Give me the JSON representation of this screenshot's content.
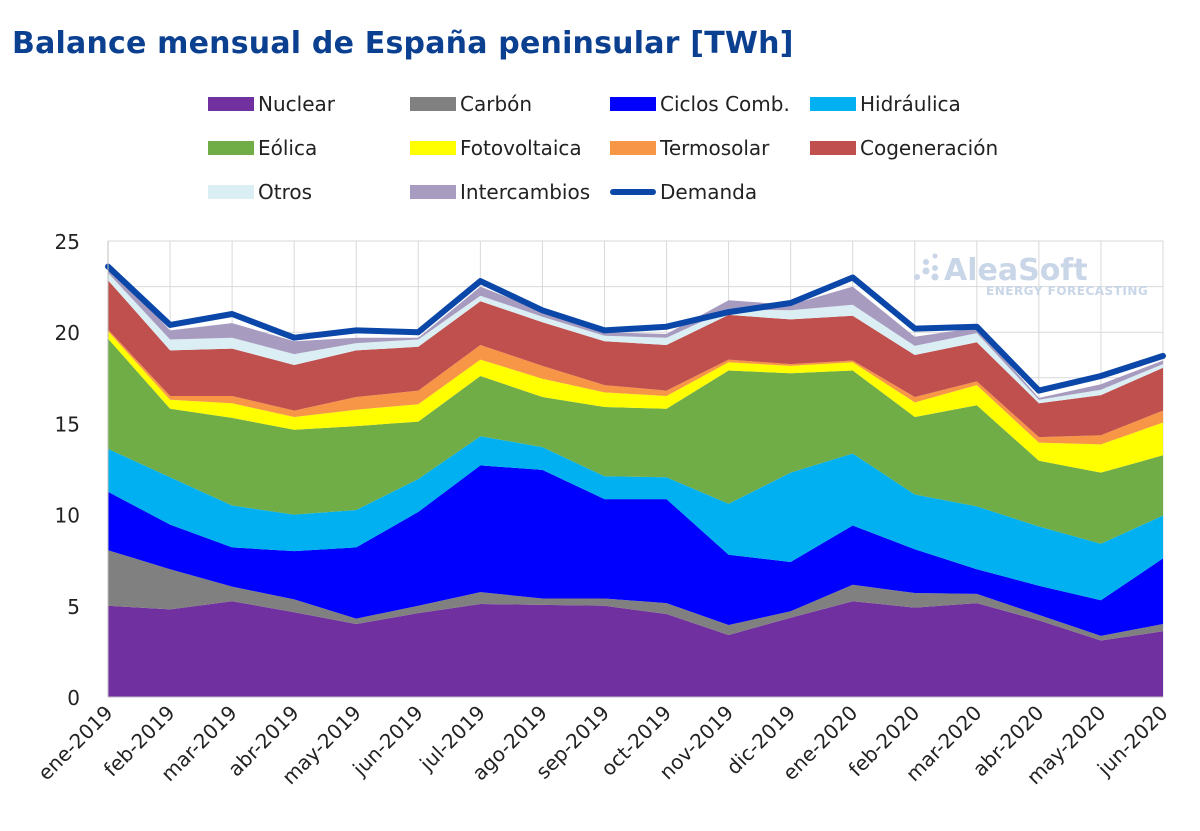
{
  "chart_data": {
    "type": "area",
    "title": "Balance mensual de España peninsular [TWh]",
    "ylim": [
      0,
      25
    ],
    "yticks": [
      "0",
      "5",
      "10",
      "15",
      "20",
      "25"
    ],
    "grid": true,
    "legend_position": "top",
    "categories": [
      "ene-2019",
      "feb-2019",
      "mar-2019",
      "abr-2019",
      "may-2019",
      "jun-2019",
      "jul-2019",
      "ago-2019",
      "sep-2019",
      "oct-2019",
      "nov-2019",
      "dic-2019",
      "ene-2020",
      "feb-2020",
      "mar-2020",
      "abr-2020",
      "may-2020",
      "jun-2020"
    ],
    "series": [
      {
        "name": "Nuclear",
        "color": "#7030a0",
        "values": [
          5.0,
          4.8,
          5.25,
          4.65,
          4.0,
          4.6,
          5.1,
          5.05,
          5.0,
          4.55,
          3.4,
          4.35,
          5.25,
          4.9,
          5.15,
          4.2,
          3.1,
          3.6
        ]
      },
      {
        "name": "Carbón",
        "color": "#808080",
        "values": [
          3.05,
          2.2,
          0.8,
          0.7,
          0.3,
          0.4,
          0.65,
          0.35,
          0.4,
          0.6,
          0.55,
          0.35,
          0.9,
          0.8,
          0.5,
          0.3,
          0.25,
          0.4
        ]
      },
      {
        "name": "Ciclos Comb.",
        "color": "#0000ff",
        "values": [
          3.2,
          2.45,
          2.15,
          2.65,
          3.9,
          5.15,
          6.95,
          7.05,
          5.45,
          5.7,
          3.85,
          2.7,
          3.25,
          2.4,
          1.35,
          1.6,
          1.95,
          3.6
        ]
      },
      {
        "name": "Hidráulica",
        "color": "#00b0f0",
        "values": [
          2.35,
          2.6,
          2.3,
          2.0,
          2.05,
          1.8,
          1.6,
          1.25,
          1.25,
          1.2,
          2.8,
          4.9,
          3.95,
          3.0,
          3.45,
          3.25,
          3.1,
          2.35
        ]
      },
      {
        "name": "Eólica",
        "color": "#70ad47",
        "values": [
          6.05,
          3.75,
          4.8,
          4.65,
          4.6,
          3.15,
          3.3,
          2.75,
          3.8,
          3.75,
          7.3,
          5.45,
          4.55,
          4.25,
          5.55,
          3.6,
          3.9,
          3.3
        ]
      },
      {
        "name": "Fotovoltaica",
        "color": "#ffff00",
        "values": [
          0.4,
          0.5,
          0.8,
          0.7,
          0.9,
          0.95,
          0.9,
          1.0,
          0.8,
          0.7,
          0.45,
          0.4,
          0.45,
          0.8,
          1.1,
          1.0,
          1.55,
          1.8
        ]
      },
      {
        "name": "Termosolar",
        "color": "#f79646",
        "values": [
          0.1,
          0.2,
          0.4,
          0.35,
          0.7,
          0.75,
          0.8,
          0.7,
          0.4,
          0.3,
          0.15,
          0.1,
          0.1,
          0.3,
          0.2,
          0.3,
          0.5,
          0.65
        ]
      },
      {
        "name": "Cogeneración",
        "color": "#c0504d",
        "values": [
          2.7,
          2.5,
          2.6,
          2.5,
          2.55,
          2.4,
          2.4,
          2.4,
          2.4,
          2.5,
          2.45,
          2.45,
          2.45,
          2.3,
          2.15,
          1.85,
          2.2,
          2.35
        ]
      },
      {
        "name": "Otros",
        "color": "#daeef3",
        "values": [
          0.4,
          0.6,
          0.6,
          0.6,
          0.4,
          0.4,
          0.3,
          0.3,
          0.3,
          0.4,
          0.3,
          0.5,
          0.6,
          0.5,
          0.5,
          0.2,
          0.3,
          0.2
        ]
      },
      {
        "name": "Intercambios",
        "color": "#a79cc0",
        "values": [
          0.5,
          0.5,
          0.8,
          0.7,
          0.3,
          0.1,
          0.5,
          0.3,
          0.2,
          0.2,
          0.5,
          0.3,
          1.0,
          0.5,
          0.3,
          0.1,
          0.3,
          0.2
        ]
      }
    ],
    "line_series": {
      "name": "Demanda",
      "color": "#0b47a8",
      "values": [
        23.6,
        20.4,
        21.0,
        19.7,
        20.1,
        20.0,
        22.8,
        21.2,
        20.1,
        20.3,
        21.1,
        21.6,
        23.0,
        20.2,
        20.3,
        16.8,
        17.6,
        18.7
      ]
    }
  },
  "watermark": {
    "brand": "AleaSoft",
    "sub": "ENERGY FORECASTING"
  }
}
